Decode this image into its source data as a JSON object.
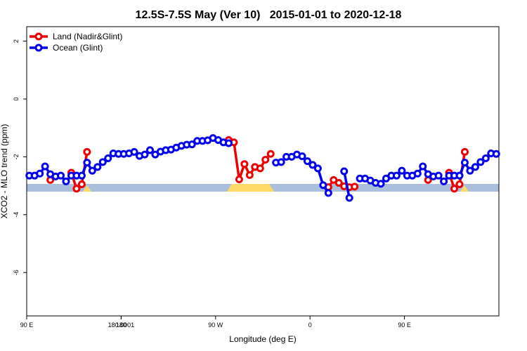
{
  "chart_data": {
    "type": "line",
    "title": "12.5S-7.5S May (Ver 10)   2015-01-01 to 2020-12-18",
    "xlabel": "Longitude (deg E)",
    "ylabel": "XCO2 - MLO trend (ppm)",
    "x": [
      92.5,
      97.5,
      102.5,
      107.5,
      112.5,
      117.5,
      122.5,
      127.5,
      132.5,
      137.5,
      142.5,
      147.5,
      152.5,
      157.5,
      162.5,
      167.5,
      172.5,
      177.5,
      182.5,
      187.5,
      192.5,
      197.5,
      202.5,
      207.5,
      212.5,
      217.5,
      222.5,
      227.5,
      232.5,
      237.5,
      242.5,
      247.5,
      252.5,
      257.5,
      262.5,
      267.5,
      272.5,
      277.5,
      282.5,
      287.5,
      292.5,
      297.5,
      302.5,
      307.5,
      312.5,
      317.5,
      322.5,
      327.5,
      332.5,
      337.5,
      342.5,
      347.5,
      352.5,
      357.5,
      362.5,
      367.5,
      372.5,
      377.5,
      382.5,
      387.5,
      392.5,
      397.5,
      402.5,
      407.5,
      412.5,
      417.5,
      422.5,
      427.5,
      432.5,
      437.5,
      442.5,
      447.5,
      452.5,
      457.5,
      462.5,
      467.5,
      472.5,
      477.5,
      482.5,
      487.5,
      492.5,
      497.5,
      502.5,
      507.5,
      512.5,
      517.5,
      522.5,
      527.5,
      532.5,
      537.5
    ],
    "series": [
      {
        "name": "Land (Nadir&Glint)",
        "color": "#ee0000",
        "values": [
          null,
          null,
          null,
          null,
          -2.8,
          null,
          null,
          null,
          -2.55,
          -3.1,
          -2.95,
          -1.83,
          null,
          null,
          null,
          null,
          null,
          null,
          null,
          null,
          null,
          null,
          null,
          null,
          null,
          null,
          null,
          null,
          null,
          null,
          null,
          null,
          null,
          null,
          null,
          null,
          null,
          null,
          -1.42,
          -1.5,
          -2.78,
          -2.25,
          -2.63,
          -2.35,
          -2.4,
          -2.1,
          -1.9,
          null,
          null,
          null,
          null,
          null,
          null,
          null,
          null,
          null,
          null,
          -3.05,
          -2.8,
          -2.9,
          -3.02,
          -3.05,
          -3.03,
          null,
          null,
          null,
          null,
          null,
          null,
          null,
          null,
          null,
          null,
          null,
          null,
          null,
          -2.8,
          null,
          null,
          null,
          -2.55,
          -3.1,
          -2.95,
          -1.83,
          null,
          null,
          null,
          null,
          null,
          null
        ]
      },
      {
        "name": "Ocean (Glint)",
        "color": "#0000ee",
        "values": [
          -2.65,
          -2.65,
          -2.58,
          -2.33,
          -2.6,
          -2.68,
          -2.65,
          -2.85,
          -2.65,
          -2.65,
          -2.65,
          -2.2,
          -2.48,
          -2.35,
          -2.18,
          -2.05,
          -1.88,
          -1.9,
          -1.9,
          -1.88,
          -1.83,
          -1.97,
          -1.92,
          -1.77,
          -1.92,
          -1.82,
          -1.77,
          -1.75,
          -1.68,
          -1.62,
          -1.58,
          -1.57,
          -1.45,
          -1.45,
          -1.43,
          -1.35,
          -1.42,
          -1.5,
          -1.53,
          null,
          null,
          null,
          null,
          null,
          null,
          null,
          null,
          -2.2,
          -2.18,
          -2.0,
          -2.0,
          -1.92,
          -1.98,
          -2.15,
          -2.28,
          -2.4,
          -2.98,
          -3.25,
          null,
          null,
          -2.5,
          -3.42,
          null,
          -2.75,
          -2.75,
          -2.82,
          -2.9,
          -2.93,
          -2.75,
          -2.65,
          -2.65,
          -2.48,
          -2.65,
          -2.65,
          -2.58,
          -2.33,
          -2.6,
          -2.68,
          -2.65,
          -2.85,
          -2.65,
          -2.65,
          -2.65,
          -2.2,
          -2.48,
          -2.35,
          -2.18,
          -2.05,
          -1.88,
          -1.9
        ]
      }
    ],
    "xlim": [
      90,
      540
    ],
    "xticks": [
      {
        "value": 90,
        "label": "90 E"
      },
      180,
      {
        "value": 270,
        "label": "90 W"
      },
      {
        "value": 360,
        "label": "0"
      },
      {
        "value": 450,
        "label": "90 E"
      },
      180.0001
    ],
    "ylim": [
      -7.5,
      2.5
    ],
    "yticks": [
      2,
      0,
      -2,
      -4,
      -6
    ],
    "legend": "top-left"
  }
}
